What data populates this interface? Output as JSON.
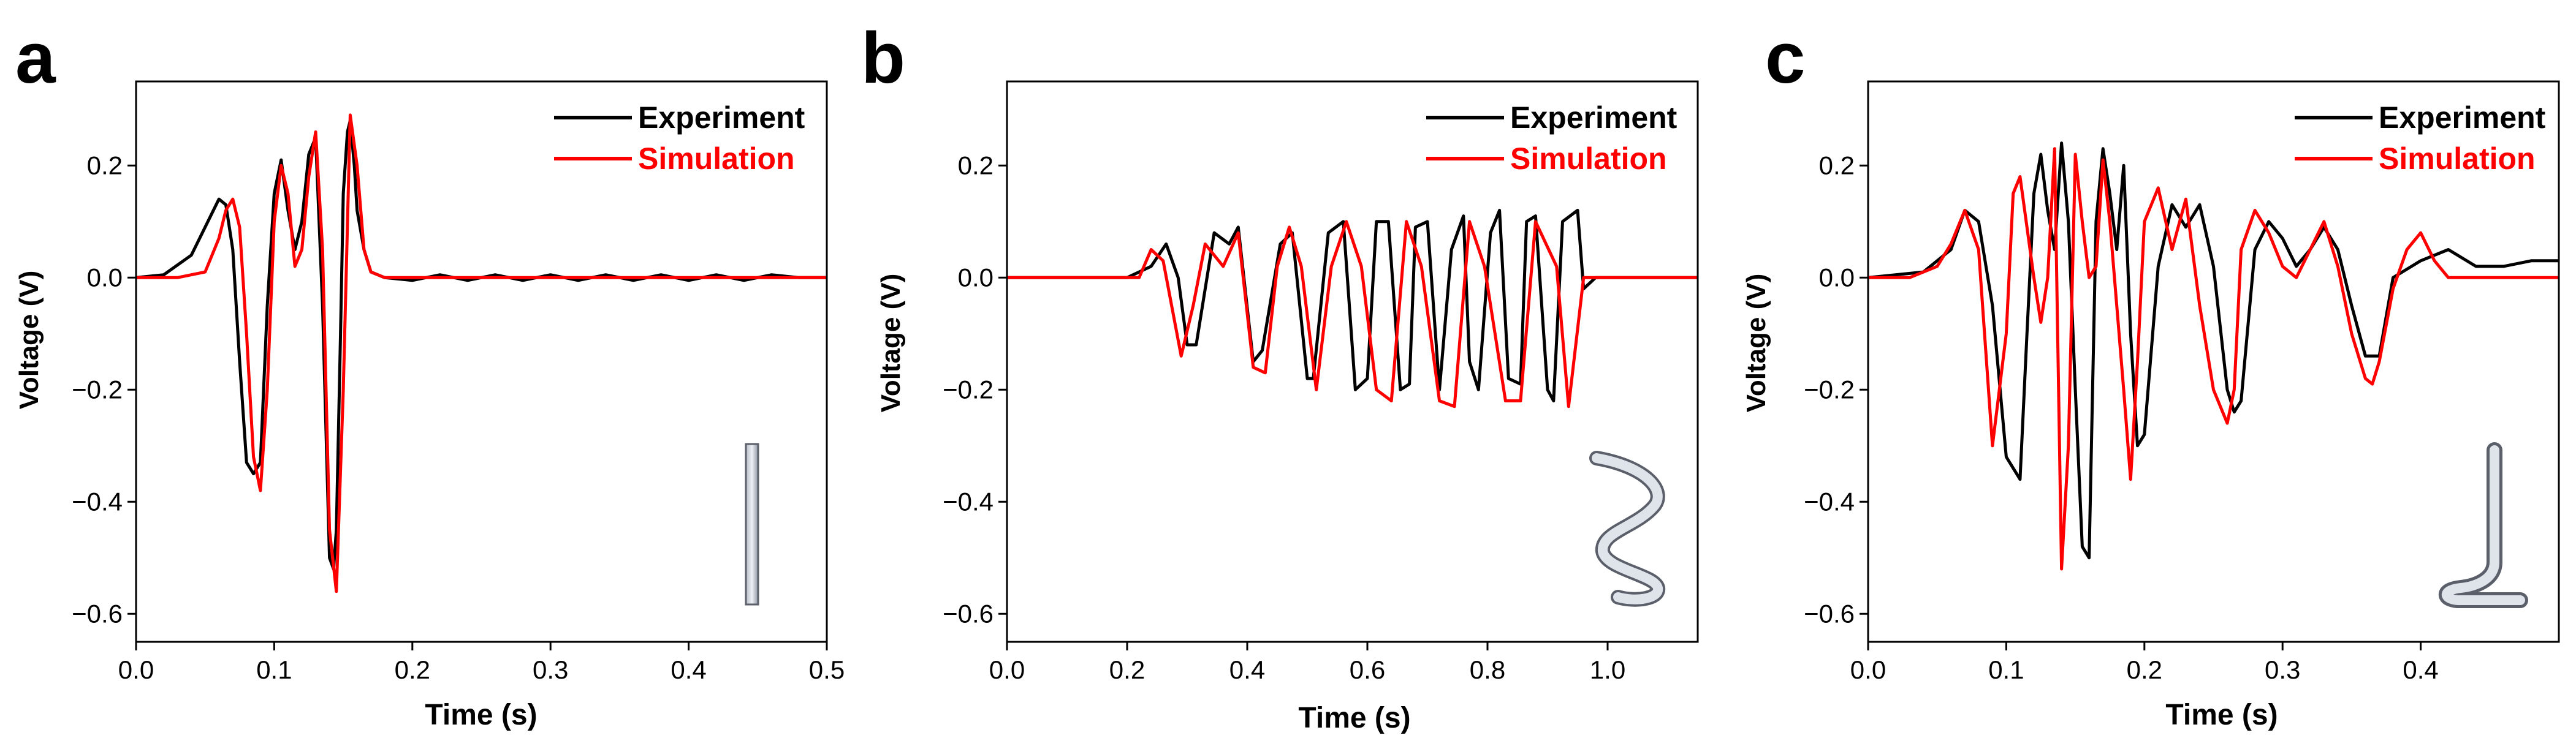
{
  "chart_data": [
    {
      "type": "line",
      "panel_label": "a",
      "xlabel": "Time (s)",
      "ylabel": "Voltage (V)",
      "xlim": [
        0,
        0.5
      ],
      "ylim": [
        -0.65,
        0.35
      ],
      "xticks": [
        0.0,
        0.1,
        0.2,
        0.3,
        0.4,
        0.5
      ],
      "xtick_labels": [
        "0.0",
        "0.1",
        "0.2",
        "0.3",
        "0.4",
        "0.5"
      ],
      "yticks": [
        -0.6,
        -0.4,
        -0.2,
        0.0,
        0.2
      ],
      "ytick_labels": [
        "−0.6",
        "−0.4",
        "−0.2",
        "0.0",
        "0.2"
      ],
      "legend": {
        "position": "top-right"
      },
      "inset_shape": "straight-rod",
      "series": [
        {
          "name": "Experiment",
          "color": "#000000",
          "x": [
            0.0,
            0.02,
            0.04,
            0.05,
            0.06,
            0.065,
            0.07,
            0.075,
            0.08,
            0.085,
            0.09,
            0.095,
            0.1,
            0.105,
            0.11,
            0.115,
            0.12,
            0.125,
            0.13,
            0.135,
            0.14,
            0.143,
            0.145,
            0.148,
            0.15,
            0.153,
            0.155,
            0.158,
            0.16,
            0.165,
            0.17,
            0.18,
            0.2,
            0.22,
            0.24,
            0.26,
            0.28,
            0.3,
            0.32,
            0.34,
            0.36,
            0.38,
            0.4,
            0.42,
            0.44,
            0.46,
            0.48,
            0.5
          ],
          "y": [
            0.0,
            0.005,
            0.04,
            0.09,
            0.14,
            0.13,
            0.05,
            -0.15,
            -0.33,
            -0.35,
            -0.33,
            -0.05,
            0.15,
            0.21,
            0.12,
            0.05,
            0.1,
            0.22,
            0.25,
            -0.05,
            -0.5,
            -0.52,
            -0.45,
            -0.1,
            0.15,
            0.26,
            0.28,
            0.2,
            0.12,
            0.05,
            0.01,
            0.0,
            -0.005,
            0.005,
            -0.005,
            0.005,
            -0.005,
            0.005,
            -0.005,
            0.005,
            -0.005,
            0.005,
            -0.005,
            0.005,
            -0.005,
            0.005,
            0.0,
            0.0
          ]
        },
        {
          "name": "Simulation",
          "color": "#ff0000",
          "x": [
            0.0,
            0.03,
            0.05,
            0.06,
            0.065,
            0.07,
            0.075,
            0.08,
            0.085,
            0.09,
            0.095,
            0.1,
            0.105,
            0.11,
            0.115,
            0.12,
            0.125,
            0.13,
            0.135,
            0.14,
            0.145,
            0.15,
            0.155,
            0.16,
            0.165,
            0.17,
            0.18,
            0.2,
            0.5
          ],
          "y": [
            0.0,
            0.0,
            0.01,
            0.07,
            0.12,
            0.14,
            0.09,
            -0.1,
            -0.32,
            -0.38,
            -0.2,
            0.1,
            0.2,
            0.15,
            0.02,
            0.05,
            0.18,
            0.26,
            0.05,
            -0.45,
            -0.56,
            -0.2,
            0.29,
            0.2,
            0.05,
            0.01,
            0.0,
            0.0,
            0.0
          ]
        }
      ]
    },
    {
      "type": "line",
      "panel_label": "b",
      "xlabel": "Time (s)",
      "ylabel": "Voltage (V)",
      "xlim": [
        0,
        1.15
      ],
      "ylim": [
        -0.65,
        0.35
      ],
      "xticks": [
        0.0,
        0.2,
        0.4,
        0.6,
        0.8,
        1.0
      ],
      "xtick_labels": [
        "0.0",
        "0.2",
        "0.4",
        "0.6",
        "0.8",
        "1.0"
      ],
      "yticks": [
        -0.6,
        -0.4,
        -0.2,
        0.0,
        0.2
      ],
      "ytick_labels": [
        "−0.6",
        "−0.4",
        "−0.2",
        "0.0",
        "0.2"
      ],
      "legend": {
        "position": "top-right"
      },
      "inset_shape": "helix",
      "series": [
        {
          "name": "Experiment",
          "color": "#000000",
          "x": [
            0.0,
            0.2,
            0.24,
            0.265,
            0.285,
            0.3,
            0.315,
            0.345,
            0.37,
            0.385,
            0.41,
            0.425,
            0.455,
            0.475,
            0.5,
            0.51,
            0.535,
            0.56,
            0.58,
            0.6,
            0.615,
            0.635,
            0.655,
            0.67,
            0.68,
            0.7,
            0.72,
            0.74,
            0.76,
            0.77,
            0.785,
            0.805,
            0.82,
            0.835,
            0.855,
            0.865,
            0.88,
            0.9,
            0.91,
            0.925,
            0.95,
            0.96,
            0.98,
            1.0,
            1.15
          ],
          "y": [
            0.0,
            0.0,
            0.02,
            0.06,
            0.0,
            -0.12,
            -0.12,
            0.08,
            0.06,
            0.09,
            -0.15,
            -0.13,
            0.06,
            0.08,
            -0.18,
            -0.18,
            0.08,
            0.1,
            -0.2,
            -0.18,
            0.1,
            0.1,
            -0.2,
            -0.19,
            0.09,
            0.1,
            -0.2,
            0.05,
            0.11,
            -0.15,
            -0.2,
            0.08,
            0.12,
            -0.18,
            -0.19,
            0.1,
            0.11,
            -0.2,
            -0.22,
            0.1,
            0.12,
            -0.02,
            0.0,
            0.0,
            0.0
          ]
        },
        {
          "name": "Simulation",
          "color": "#ff0000",
          "x": [
            0.0,
            0.22,
            0.24,
            0.26,
            0.29,
            0.31,
            0.33,
            0.36,
            0.385,
            0.41,
            0.43,
            0.45,
            0.47,
            0.49,
            0.515,
            0.54,
            0.565,
            0.59,
            0.615,
            0.64,
            0.665,
            0.69,
            0.72,
            0.745,
            0.77,
            0.795,
            0.83,
            0.855,
            0.88,
            0.915,
            0.935,
            0.96,
            1.0,
            1.15
          ],
          "y": [
            0.0,
            0.0,
            0.05,
            0.03,
            -0.14,
            -0.05,
            0.06,
            0.02,
            0.08,
            -0.16,
            -0.17,
            0.02,
            0.09,
            0.02,
            -0.2,
            0.02,
            0.1,
            0.02,
            -0.2,
            -0.22,
            0.1,
            0.02,
            -0.22,
            -0.23,
            0.1,
            0.02,
            -0.22,
            -0.22,
            0.1,
            0.02,
            -0.23,
            0.0,
            0.0,
            0.0
          ]
        }
      ]
    },
    {
      "type": "line",
      "panel_label": "c",
      "xlabel": "Time (s)",
      "ylabel": "Voltage (V)",
      "xlim": [
        0,
        0.5
      ],
      "ylim": [
        -0.65,
        0.35
      ],
      "xticks": [
        0.0,
        0.1,
        0.2,
        0.3,
        0.4
      ],
      "xtick_labels": [
        "0.0",
        "0.1",
        "0.2",
        "0.3",
        "0.4"
      ],
      "yticks": [
        -0.6,
        -0.4,
        -0.2,
        0.0,
        0.2
      ],
      "ytick_labels": [
        "−0.6",
        "−0.4",
        "−0.2",
        "0.0",
        "0.2"
      ],
      "legend": {
        "position": "top-right"
      },
      "inset_shape": "j-hook",
      "series": [
        {
          "name": "Experiment",
          "color": "#000000",
          "x": [
            0.0,
            0.04,
            0.06,
            0.07,
            0.08,
            0.09,
            0.1,
            0.11,
            0.115,
            0.12,
            0.125,
            0.13,
            0.135,
            0.14,
            0.145,
            0.15,
            0.155,
            0.16,
            0.165,
            0.17,
            0.175,
            0.18,
            0.185,
            0.19,
            0.195,
            0.2,
            0.21,
            0.22,
            0.23,
            0.24,
            0.25,
            0.26,
            0.265,
            0.27,
            0.28,
            0.29,
            0.3,
            0.31,
            0.32,
            0.33,
            0.34,
            0.35,
            0.36,
            0.37,
            0.38,
            0.4,
            0.42,
            0.44,
            0.46,
            0.48,
            0.5
          ],
          "y": [
            0.0,
            0.01,
            0.05,
            0.12,
            0.1,
            -0.05,
            -0.32,
            -0.36,
            -0.1,
            0.15,
            0.22,
            0.12,
            0.05,
            0.24,
            0.1,
            -0.2,
            -0.48,
            -0.5,
            0.1,
            0.23,
            0.15,
            0.05,
            0.2,
            -0.1,
            -0.3,
            -0.28,
            0.02,
            0.13,
            0.09,
            0.13,
            0.02,
            -0.2,
            -0.24,
            -0.22,
            0.05,
            0.1,
            0.07,
            0.02,
            0.05,
            0.09,
            0.05,
            -0.05,
            -0.14,
            -0.14,
            0.0,
            0.03,
            0.05,
            0.02,
            0.02,
            0.03,
            0.03
          ]
        },
        {
          "name": "Simulation",
          "color": "#ff0000",
          "x": [
            0.0,
            0.03,
            0.05,
            0.06,
            0.07,
            0.08,
            0.09,
            0.1,
            0.105,
            0.11,
            0.12,
            0.125,
            0.13,
            0.135,
            0.14,
            0.145,
            0.15,
            0.155,
            0.16,
            0.165,
            0.17,
            0.175,
            0.18,
            0.185,
            0.19,
            0.195,
            0.2,
            0.21,
            0.22,
            0.23,
            0.24,
            0.25,
            0.26,
            0.265,
            0.27,
            0.28,
            0.29,
            0.3,
            0.31,
            0.32,
            0.33,
            0.34,
            0.35,
            0.36,
            0.365,
            0.37,
            0.38,
            0.39,
            0.4,
            0.41,
            0.42,
            0.5
          ],
          "y": [
            0.0,
            0.0,
            0.02,
            0.06,
            0.12,
            0.05,
            -0.3,
            -0.1,
            0.15,
            0.18,
            0.0,
            -0.08,
            0.0,
            0.23,
            -0.52,
            -0.3,
            0.22,
            0.1,
            0.0,
            0.02,
            0.21,
            0.1,
            -0.05,
            -0.2,
            -0.36,
            -0.15,
            0.1,
            0.16,
            0.05,
            0.14,
            -0.05,
            -0.2,
            -0.26,
            -0.2,
            0.05,
            0.12,
            0.08,
            0.02,
            0.0,
            0.05,
            0.1,
            0.02,
            -0.1,
            -0.18,
            -0.19,
            -0.15,
            -0.02,
            0.05,
            0.08,
            0.03,
            0.0,
            0.0
          ]
        }
      ]
    }
  ]
}
